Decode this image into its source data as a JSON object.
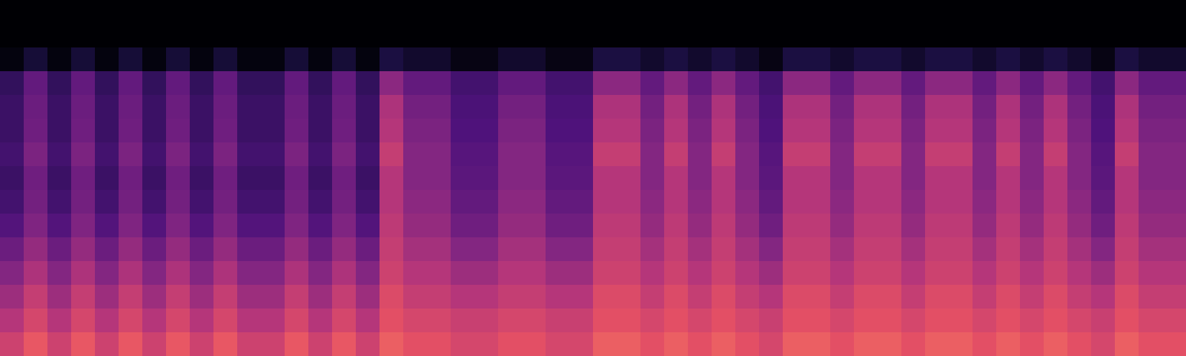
{
  "chart_data": {
    "type": "heatmap",
    "tick_labels": false,
    "zlim": [
      0,
      100
    ],
    "cells": [
      [
        0,
        0,
        0,
        0,
        0,
        0,
        0,
        0,
        0,
        0,
        0,
        0,
        0,
        0,
        0,
        0,
        0,
        0,
        0,
        0,
        0,
        0,
        0,
        0,
        0,
        0,
        0,
        0,
        0,
        0,
        0,
        0,
        0,
        0,
        0,
        0,
        0,
        0,
        0,
        0,
        0,
        0,
        0,
        0,
        0,
        0,
        0,
        0,
        0,
        0
      ],
      [
        0,
        0,
        0,
        0,
        0,
        0,
        0,
        0,
        0,
        0,
        0,
        0,
        0,
        0,
        0,
        0,
        0,
        0,
        0,
        0,
        0,
        0,
        0,
        0,
        0,
        0,
        0,
        0,
        0,
        0,
        0,
        0,
        0,
        0,
        0,
        0,
        0,
        0,
        0,
        0,
        0,
        0,
        0,
        0,
        0,
        0,
        0,
        0,
        0,
        0
      ],
      [
        2,
        10,
        2,
        10,
        2,
        10,
        2,
        10,
        2,
        10,
        2,
        2,
        10,
        2,
        10,
        2,
        12,
        8,
        8,
        3,
        3,
        8,
        8,
        3,
        3,
        12,
        12,
        8,
        12,
        8,
        12,
        8,
        3,
        12,
        12,
        8,
        12,
        12,
        8,
        12,
        12,
        8,
        12,
        8,
        12,
        8,
        3,
        12,
        8,
        8
      ],
      [
        18,
        30,
        18,
        30,
        18,
        30,
        18,
        30,
        18,
        30,
        18,
        18,
        30,
        18,
        30,
        18,
        40,
        30,
        30,
        22,
        22,
        30,
        30,
        22,
        22,
        40,
        40,
        30,
        40,
        30,
        40,
        30,
        22,
        40,
        40,
        30,
        40,
        40,
        30,
        40,
        40,
        30,
        40,
        30,
        40,
        30,
        22,
        40,
        30,
        30
      ],
      [
        20,
        32,
        20,
        32,
        20,
        32,
        20,
        32,
        20,
        32,
        20,
        20,
        32,
        20,
        32,
        20,
        48,
        34,
        34,
        24,
        24,
        34,
        34,
        24,
        24,
        48,
        48,
        34,
        48,
        34,
        48,
        34,
        24,
        48,
        48,
        34,
        48,
        48,
        34,
        48,
        48,
        34,
        48,
        34,
        48,
        34,
        24,
        48,
        34,
        34
      ],
      [
        20,
        33,
        20,
        33,
        20,
        33,
        20,
        33,
        20,
        33,
        20,
        20,
        33,
        20,
        33,
        20,
        50,
        36,
        36,
        25,
        25,
        36,
        36,
        25,
        25,
        50,
        50,
        36,
        50,
        36,
        50,
        36,
        25,
        50,
        50,
        36,
        50,
        50,
        36,
        50,
        50,
        36,
        50,
        36,
        50,
        36,
        25,
        50,
        36,
        36
      ],
      [
        22,
        36,
        22,
        36,
        22,
        36,
        22,
        36,
        22,
        36,
        22,
        22,
        36,
        22,
        36,
        22,
        54,
        38,
        38,
        27,
        27,
        38,
        38,
        27,
        27,
        54,
        54,
        38,
        54,
        38,
        54,
        38,
        27,
        54,
        54,
        38,
        54,
        54,
        38,
        54,
        54,
        38,
        54,
        38,
        54,
        38,
        27,
        54,
        38,
        38
      ],
      [
        20,
        33,
        20,
        33,
        20,
        33,
        20,
        33,
        20,
        33,
        20,
        20,
        33,
        20,
        33,
        20,
        50,
        38,
        38,
        28,
        28,
        38,
        38,
        28,
        28,
        50,
        50,
        38,
        50,
        38,
        50,
        38,
        28,
        50,
        50,
        38,
        50,
        50,
        38,
        50,
        50,
        38,
        50,
        38,
        50,
        38,
        28,
        50,
        38,
        38
      ],
      [
        22,
        34,
        22,
        34,
        22,
        34,
        22,
        34,
        22,
        34,
        22,
        22,
        34,
        22,
        34,
        22,
        50,
        40,
        40,
        30,
        30,
        40,
        40,
        30,
        30,
        50,
        50,
        40,
        50,
        40,
        50,
        40,
        30,
        50,
        50,
        40,
        50,
        50,
        40,
        50,
        50,
        40,
        50,
        40,
        50,
        40,
        30,
        50,
        40,
        40
      ],
      [
        26,
        37,
        26,
        37,
        26,
        37,
        26,
        37,
        26,
        37,
        26,
        26,
        37,
        26,
        37,
        26,
        52,
        42,
        42,
        33,
        33,
        42,
        42,
        33,
        33,
        52,
        52,
        42,
        52,
        42,
        52,
        42,
        33,
        52,
        52,
        42,
        52,
        52,
        42,
        52,
        52,
        42,
        52,
        42,
        52,
        42,
        33,
        52,
        42,
        42
      ],
      [
        32,
        42,
        32,
        42,
        32,
        42,
        32,
        42,
        32,
        42,
        32,
        32,
        42,
        32,
        42,
        32,
        54,
        46,
        46,
        38,
        38,
        46,
        46,
        38,
        38,
        54,
        54,
        46,
        54,
        46,
        54,
        46,
        38,
        54,
        54,
        46,
        54,
        54,
        46,
        54,
        54,
        46,
        54,
        46,
        54,
        46,
        38,
        54,
        46,
        46
      ],
      [
        38,
        48,
        38,
        48,
        38,
        48,
        38,
        48,
        38,
        48,
        38,
        38,
        48,
        38,
        48,
        38,
        56,
        50,
        50,
        44,
        44,
        50,
        50,
        44,
        44,
        56,
        56,
        50,
        56,
        50,
        56,
        50,
        44,
        56,
        56,
        50,
        56,
        56,
        50,
        56,
        56,
        50,
        56,
        50,
        56,
        50,
        44,
        56,
        50,
        50
      ],
      [
        44,
        54,
        44,
        54,
        44,
        54,
        44,
        54,
        44,
        54,
        44,
        44,
        54,
        44,
        54,
        44,
        60,
        54,
        54,
        50,
        50,
        54,
        54,
        50,
        50,
        60,
        60,
        54,
        60,
        54,
        60,
        54,
        50,
        60,
        60,
        54,
        60,
        60,
        54,
        60,
        60,
        54,
        60,
        54,
        60,
        54,
        50,
        60,
        54,
        54
      ],
      [
        50,
        58,
        50,
        58,
        50,
        58,
        50,
        58,
        50,
        58,
        50,
        50,
        58,
        50,
        58,
        50,
        62,
        58,
        58,
        55,
        55,
        58,
        58,
        55,
        55,
        62,
        62,
        58,
        62,
        58,
        62,
        58,
        55,
        62,
        62,
        58,
        62,
        62,
        58,
        62,
        62,
        58,
        62,
        58,
        62,
        58,
        55,
        62,
        58,
        58
      ],
      [
        56,
        64,
        56,
        64,
        56,
        64,
        56,
        64,
        56,
        64,
        56,
        56,
        64,
        56,
        64,
        56,
        66,
        62,
        62,
        58,
        58,
        62,
        62,
        58,
        58,
        66,
        66,
        62,
        66,
        62,
        66,
        62,
        58,
        66,
        66,
        62,
        66,
        66,
        62,
        66,
        66,
        62,
        66,
        62,
        66,
        62,
        58,
        66,
        62,
        62
      ]
    ]
  }
}
